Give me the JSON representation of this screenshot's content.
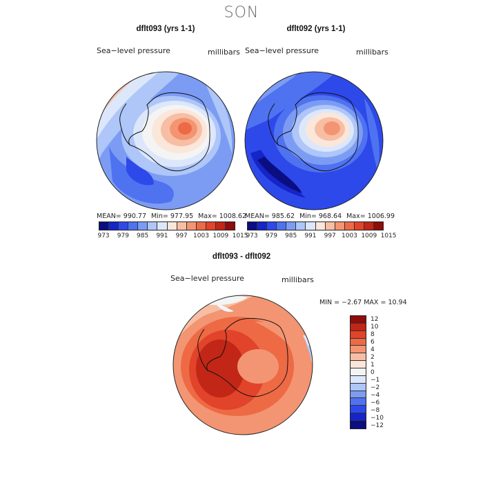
{
  "season": "SON",
  "field_label": "Sea−level pressure",
  "units": "millibars",
  "panels": [
    {
      "title": "dflt093 (yrs 1-1)",
      "stats": {
        "mean": "MEAN= 990.77",
        "min": "Min= 977.95",
        "max": "Max= 1008.62"
      }
    },
    {
      "title": "dflt092 (yrs 1-1)",
      "stats": {
        "mean": "MEAN= 985.62",
        "min": "Min= 968.64",
        "max": "Max= 1006.99"
      }
    }
  ],
  "diff_panel": {
    "title": "dflt093 - dflt092",
    "minmax": "MIN =   −2.67 MAX =   10.94"
  },
  "abs_colorbar": {
    "labels": [
      "973",
      "979",
      "985",
      "991",
      "997",
      "1003",
      "1009",
      "1015"
    ],
    "colors": [
      "#0a0e82",
      "#1525c7",
      "#2e49ea",
      "#4f72f0",
      "#7c9cf4",
      "#aec6f8",
      "#dce7fb",
      "#fbe6da",
      "#f7bea4",
      "#f39572",
      "#ed6a45",
      "#e1442a",
      "#c12617",
      "#8f0d0a"
    ]
  },
  "diff_colorbar": {
    "labels": [
      "12",
      "10",
      "8",
      "6",
      "4",
      "2",
      "1",
      "0",
      "−1",
      "−2",
      "−4",
      "−6",
      "−8",
      "−10",
      "−12"
    ],
    "colors": [
      "#8f0d0a",
      "#c12617",
      "#e1442a",
      "#ed6a45",
      "#f39572",
      "#f7bea4",
      "#fbe6da",
      "#f4f4f4",
      "#dce7fb",
      "#aec6f8",
      "#7c9cf4",
      "#4f72f0",
      "#2e49ea",
      "#1525c7",
      "#0a0e82"
    ]
  },
  "map_colors": {
    "red_dark": "#c12617",
    "red": "#e1442a",
    "orange": "#ed6a45",
    "salmon": "#f39572",
    "peach": "#f7bea4",
    "cream": "#fbe6da",
    "white": "#f4f4f4",
    "pale_blue": "#dce7fb",
    "light_blue": "#aec6f8",
    "mid_blue": "#7c9cf4",
    "blue": "#4f72f0",
    "deep_blue": "#2e49ea",
    "navy": "#1525c7",
    "darkest": "#0a0e82"
  }
}
